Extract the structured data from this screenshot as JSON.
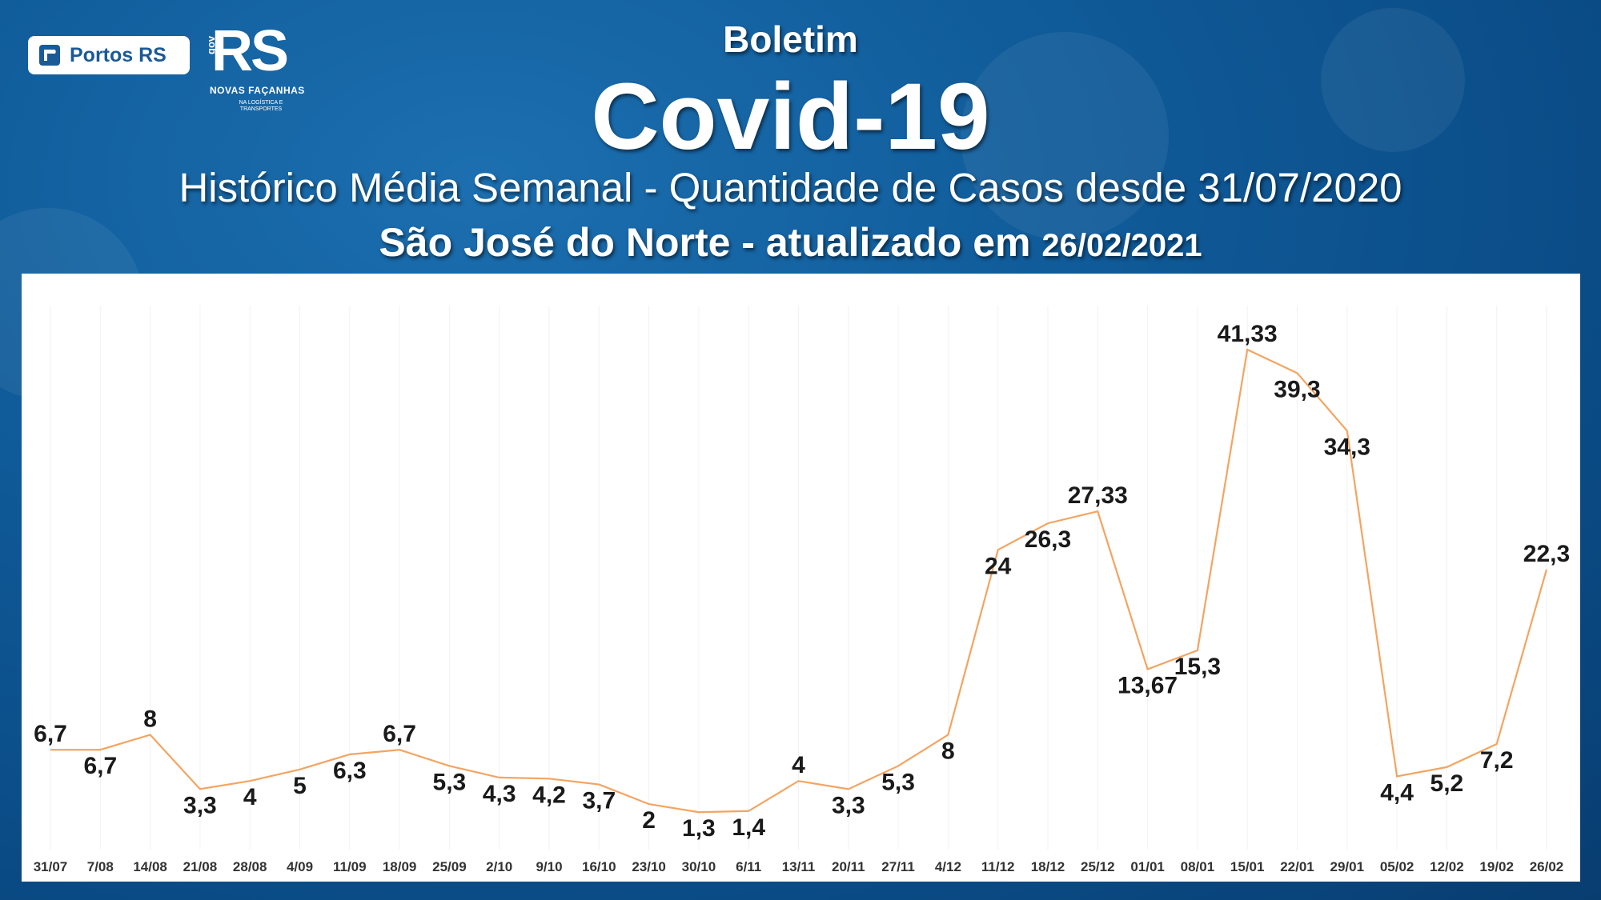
{
  "header": {
    "boletim": "Boletim",
    "covid": "Covid-19",
    "historico": "Histórico Média Semanal - Quantidade de Casos desde 31/07/2020",
    "local": "São José do Norte - atualizado em",
    "date": "26/02/2021"
  },
  "logos": {
    "portos": "Portos RS",
    "rs": "RS",
    "gov": "gov",
    "novas": "NOVAS FAÇANHAS",
    "na_logistica": "NA LOGÍSTICA E TRANSPORTES"
  },
  "chart_data": {
    "type": "line",
    "title": "",
    "xlabel": "",
    "ylabel": "",
    "ylim": [
      0,
      45
    ],
    "grid": false,
    "color": "#f4a460",
    "categories": [
      "31/07",
      "7/08",
      "14/08",
      "21/08",
      "28/08",
      "4/09",
      "11/09",
      "18/09",
      "25/09",
      "2/10",
      "9/10",
      "16/10",
      "23/10",
      "30/10",
      "6/11",
      "13/11",
      "20/11",
      "27/11",
      "4/12",
      "11/12",
      "18/12",
      "25/12",
      "01/01",
      "08/01",
      "15/01",
      "22/01",
      "29/01",
      "05/02",
      "12/02",
      "19/02",
      "26/02"
    ],
    "values": [
      6.7,
      6.7,
      8,
      3.3,
      4,
      5,
      6.3,
      6.7,
      5.3,
      4.3,
      4.2,
      3.7,
      2,
      1.3,
      1.4,
      4,
      3.3,
      5.3,
      8,
      24,
      26.3,
      27.33,
      13.67,
      15.3,
      41.33,
      39.3,
      34.3,
      4.4,
      5.2,
      7.2,
      22.3
    ],
    "labels": [
      "6,7",
      "6,7",
      "8",
      "3,3",
      "4",
      "5",
      "6,3",
      "6,7",
      "5,3",
      "4,3",
      "4,2",
      "3,7",
      "2",
      "1,3",
      "1,4",
      "4",
      "3,3",
      "5,3",
      "8",
      "24",
      "26,3",
      "27,33",
      "13,67",
      "15,3",
      "41,33",
      "39,3",
      "34,3",
      "4,4",
      "5,2",
      "7,2",
      "22,3"
    ]
  }
}
